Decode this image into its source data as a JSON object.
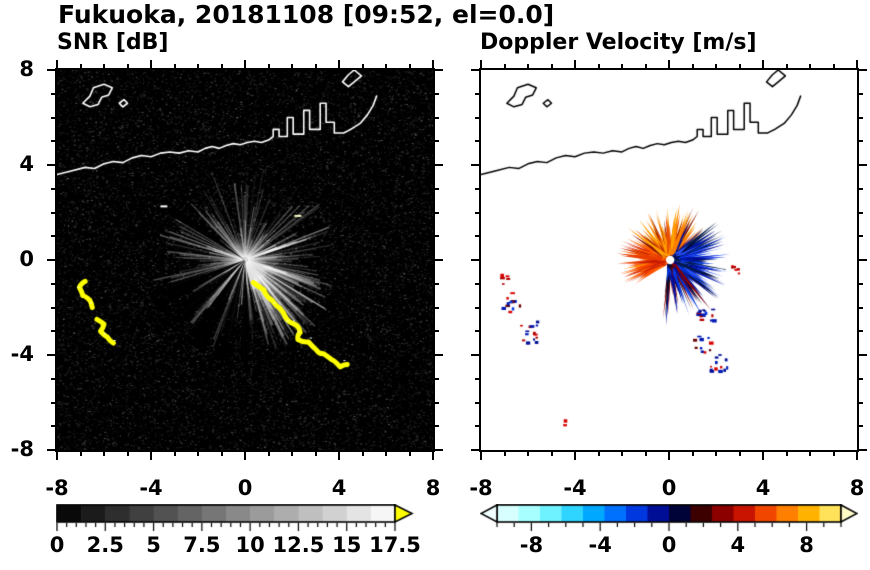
{
  "title": "Fukuoka, 20181108 [09:52, el=0.0]",
  "chart_data": [
    {
      "type": "heatmap",
      "id": "snr",
      "title": "SNR [dB]",
      "xlabel": "",
      "ylabel": "",
      "xlim": [
        -8,
        8
      ],
      "ylim": [
        -8,
        8
      ],
      "xticks": [
        -8,
        -4,
        0,
        4,
        8
      ],
      "yticks": [
        -8,
        -4,
        0,
        4,
        8
      ],
      "minor_tick_step": 1,
      "grid": false,
      "background": "#000000",
      "colorbar": {
        "range": [
          0,
          17.5
        ],
        "segment_step": 1.25,
        "tick_labels": [
          0,
          2.5,
          5,
          7.5,
          10,
          12.5,
          15,
          17.5
        ],
        "minor_tick_step": 0.5,
        "low_color": "#000000",
        "high_color": "#ffffff",
        "over_arrow_color": "#ffff00"
      },
      "radar_center": [
        0,
        0
      ],
      "noise": {
        "density": 15000,
        "max_alpha": 0.34
      },
      "fan": {
        "ray_count": 270,
        "radius_range_units": [
          0.9,
          4.0
        ],
        "bright_sector_deg": [
          -75,
          -15
        ],
        "ne_ray_deg": [
          18,
          30
        ],
        "shadow_sectors_deg": [
          [
            199,
            209
          ],
          [
            214,
            226
          ],
          [
            233,
            246
          ],
          [
            252,
            261
          ],
          [
            267,
            273
          ],
          [
            143,
            149
          ]
        ]
      },
      "high_snr_arcs": [
        {
          "color": "#ffff00",
          "width": 5,
          "points": [
            [
              0.35,
              -0.95
            ],
            [
              0.8,
              -1.25
            ],
            [
              1.15,
              -1.7
            ],
            [
              1.5,
              -2.05
            ],
            [
              1.75,
              -2.45
            ],
            [
              2.1,
              -2.7
            ],
            [
              2.35,
              -3.05
            ],
            [
              2.25,
              -3.35
            ],
            [
              2.7,
              -3.45
            ],
            [
              3.05,
              -3.8
            ],
            [
              3.35,
              -3.95
            ],
            [
              3.7,
              -4.2
            ],
            [
              4.05,
              -4.5
            ],
            [
              4.35,
              -4.4
            ]
          ]
        },
        {
          "color": "#ffff00",
          "width": 5,
          "points": [
            [
              -6.8,
              -0.9
            ],
            [
              -7.05,
              -1.15
            ],
            [
              -6.9,
              -1.5
            ],
            [
              -6.6,
              -1.7
            ],
            [
              -6.5,
              -2.0
            ]
          ]
        },
        {
          "color": "#ffff00",
          "width": 5,
          "points": [
            [
              -6.3,
              -2.5
            ],
            [
              -6.0,
              -2.7
            ],
            [
              -6.15,
              -3.0
            ],
            [
              -5.85,
              -3.25
            ],
            [
              -5.6,
              -3.5
            ]
          ]
        }
      ],
      "small_echoes": [
        {
          "x": 2.1,
          "y": 1.9,
          "color": "#ffffcc"
        },
        {
          "x": -3.6,
          "y": 2.3,
          "color": "#ffffff"
        }
      ],
      "coastline_color": "#ffffff"
    },
    {
      "type": "heatmap",
      "id": "doppler",
      "title": "Doppler Velocity [m/s]",
      "xlabel": "",
      "ylabel": "",
      "xlim": [
        -8,
        8
      ],
      "ylim": [
        -8,
        8
      ],
      "xticks": [
        -8,
        -4,
        0,
        4,
        8
      ],
      "yticks": [
        -8,
        -4,
        0,
        4,
        8
      ],
      "minor_tick_step": 1,
      "grid": false,
      "background": "#ffffff",
      "colorbar": {
        "range": [
          -10,
          10
        ],
        "tick_labels": [
          -8,
          -4,
          0,
          4,
          8
        ],
        "minor_tick_step": 1,
        "segment_colors": [
          "#d8ffff",
          "#a8ffff",
          "#6ef2ff",
          "#2fd4ff",
          "#00a8ff",
          "#0070ff",
          "#0038e0",
          "#000e96",
          "#000338",
          "#3c0000",
          "#8c0000",
          "#c81400",
          "#f04600",
          "#ff7f00",
          "#ffb300",
          "#ffe25a"
        ],
        "under_arrow_color": "#f0ffff",
        "over_arrow_color": "#fffbc8"
      },
      "radar_center": [
        0.05,
        0
      ],
      "center_hole_radius_units": 0.18,
      "velocity_lobes": [
        {
          "name": "west-outbound",
          "angle_deg": [
            150,
            215
          ],
          "length_units": [
            0.5,
            2.3
          ],
          "spikes": 220,
          "colors": [
            "#ff6a00",
            "#ff8c00",
            "#e83c00",
            "#c81e00",
            "#ff4400"
          ]
        },
        {
          "name": "north-outbound",
          "angle_deg": [
            55,
            150
          ],
          "length_units": [
            0.4,
            2.5
          ],
          "spikes": 130,
          "colors": [
            "#ff8c00",
            "#ffa200",
            "#e85000",
            "#8c1400"
          ]
        },
        {
          "name": "northeast-mixed",
          "angle_deg": [
            35,
            75
          ],
          "length_units": [
            0.4,
            2.2
          ],
          "spikes": 40,
          "colors": [
            "#0038e0",
            "#ff7f00",
            "#8c0000",
            "#000e96"
          ]
        },
        {
          "name": "east-inbound",
          "angle_deg": [
            -55,
            40
          ],
          "length_units": [
            0.5,
            2.6
          ],
          "spikes": 260,
          "colors": [
            "#0038e0",
            "#0018b4",
            "#000e96",
            "#051c4a",
            "#2a52ff",
            "#000540"
          ]
        },
        {
          "name": "southeast-inbound",
          "angle_deg": [
            -100,
            -35
          ],
          "length_units": [
            0.5,
            2.8
          ],
          "spikes": 100,
          "colors": [
            "#000e96",
            "#0a0a28",
            "#0038e0",
            "#8c0000"
          ]
        }
      ],
      "speck_clusters": [
        {
          "cx": -7.15,
          "cy": -0.8,
          "spread": 0.25,
          "count": 5,
          "colors": [
            "#d80000",
            "#b40000"
          ]
        },
        {
          "cx": -6.75,
          "cy": -1.75,
          "spread": 0.4,
          "count": 12,
          "colors": [
            "#d80000",
            "#0018b4",
            "#660000",
            "#0038e0"
          ]
        },
        {
          "cx": -6.05,
          "cy": -3.0,
          "spread": 0.45,
          "count": 14,
          "colors": [
            "#d80000",
            "#0018b4",
            "#b40000",
            "#000e96"
          ]
        },
        {
          "cx": 1.35,
          "cy": -3.5,
          "spread": 0.35,
          "count": 10,
          "colors": [
            "#d80000",
            "#0018b4",
            "#660000"
          ]
        },
        {
          "cx": 2.1,
          "cy": -4.25,
          "spread": 0.4,
          "count": 12,
          "colors": [
            "#0018b4",
            "#d80000",
            "#000e96"
          ]
        },
        {
          "cx": 1.5,
          "cy": -2.4,
          "spread": 0.35,
          "count": 14,
          "colors": [
            "#0018b4",
            "#000e96",
            "#0038e0",
            "#b40000"
          ]
        },
        {
          "cx": -4.6,
          "cy": -6.8,
          "spread": 0.12,
          "count": 2,
          "colors": [
            "#d80000"
          ]
        },
        {
          "cx": 2.75,
          "cy": -0.4,
          "spread": 0.2,
          "count": 6,
          "colors": [
            "#d80000",
            "#b40000"
          ]
        }
      ],
      "coastline_color": "#000000"
    }
  ],
  "coastline": {
    "mainland": [
      [
        -8,
        3.6
      ],
      [
        -7.4,
        3.75
      ],
      [
        -6.8,
        3.9
      ],
      [
        -6.4,
        3.85
      ],
      [
        -6.0,
        4.05
      ],
      [
        -5.6,
        4.15
      ],
      [
        -5.2,
        4.1
      ],
      [
        -4.8,
        4.3
      ],
      [
        -4.4,
        4.4
      ],
      [
        -4.0,
        4.35
      ],
      [
        -3.6,
        4.5
      ],
      [
        -3.2,
        4.55
      ],
      [
        -2.8,
        4.5
      ],
      [
        -2.4,
        4.6
      ],
      [
        -2.0,
        4.55
      ],
      [
        -1.7,
        4.7
      ],
      [
        -1.4,
        4.78
      ],
      [
        -1.1,
        4.7
      ],
      [
        -0.8,
        4.82
      ],
      [
        -0.5,
        4.9
      ],
      [
        -0.2,
        4.85
      ],
      [
        0.1,
        4.95
      ],
      [
        0.4,
        5.0
      ],
      [
        0.7,
        4.95
      ],
      [
        1.0,
        5.05
      ],
      [
        1.2,
        5.2
      ],
      [
        1.2,
        5.5
      ],
      [
        1.45,
        5.5
      ],
      [
        1.45,
        5.2
      ],
      [
        1.8,
        5.2
      ],
      [
        1.8,
        6.0
      ],
      [
        2.05,
        6.0
      ],
      [
        2.05,
        5.3
      ],
      [
        2.5,
        5.3
      ],
      [
        2.5,
        6.3
      ],
      [
        2.75,
        6.3
      ],
      [
        2.75,
        5.5
      ],
      [
        3.2,
        5.5
      ],
      [
        3.2,
        6.6
      ],
      [
        3.45,
        6.6
      ],
      [
        3.45,
        5.8
      ],
      [
        3.8,
        5.8
      ],
      [
        3.8,
        5.35
      ],
      [
        4.2,
        5.35
      ],
      [
        4.5,
        5.5
      ],
      [
        4.9,
        5.75
      ],
      [
        5.2,
        6.1
      ],
      [
        5.45,
        6.5
      ],
      [
        5.6,
        6.9
      ]
    ],
    "islands": [
      [
        [
          -6.9,
          6.6
        ],
        [
          -6.6,
          6.9
        ],
        [
          -6.45,
          7.25
        ],
        [
          -6.0,
          7.4
        ],
        [
          -5.65,
          7.25
        ],
        [
          -5.8,
          6.95
        ],
        [
          -6.1,
          6.85
        ],
        [
          -6.25,
          6.55
        ],
        [
          -6.6,
          6.45
        ],
        [
          -6.9,
          6.6
        ]
      ],
      [
        [
          -5.35,
          6.6
        ],
        [
          -5.15,
          6.75
        ],
        [
          -5.0,
          6.6
        ],
        [
          -5.2,
          6.45
        ],
        [
          -5.35,
          6.6
        ]
      ],
      [
        [
          4.15,
          7.5
        ],
        [
          4.4,
          7.8
        ],
        [
          4.65,
          8.0
        ],
        [
          4.95,
          7.75
        ],
        [
          4.65,
          7.5
        ],
        [
          4.4,
          7.3
        ],
        [
          4.15,
          7.5
        ]
      ]
    ]
  }
}
